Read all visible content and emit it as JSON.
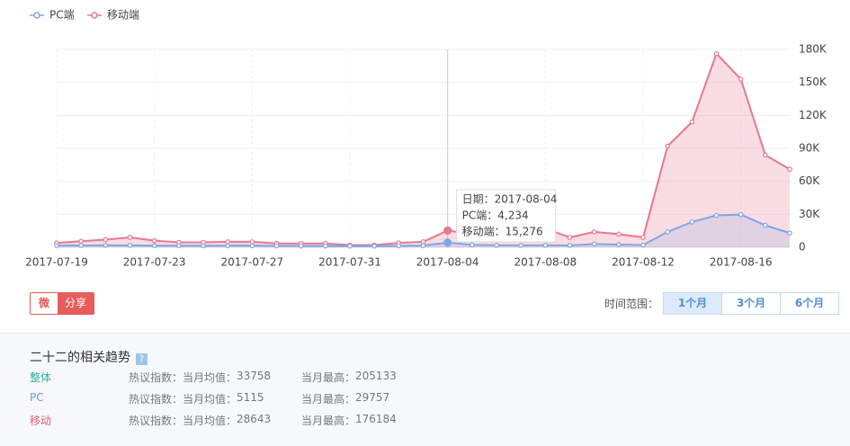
{
  "chart_data": {
    "type": "line",
    "categories": [
      "2017-07-19",
      null,
      null,
      null,
      "2017-07-23",
      null,
      null,
      null,
      "2017-07-27",
      null,
      null,
      null,
      "2017-07-31",
      null,
      null,
      null,
      "2017-08-04",
      null,
      null,
      null,
      "2017-08-08",
      null,
      null,
      null,
      "2017-08-12",
      null,
      null,
      null,
      "2017-08-16",
      null,
      null
    ],
    "series": [
      {
        "name": "PC端",
        "color": "#7fa6e6",
        "values": [
          1500,
          1600,
          1800,
          1700,
          1500,
          1400,
          1400,
          1500,
          1500,
          1300,
          1200,
          1200,
          1100,
          1100,
          1300,
          1500,
          4234,
          2200,
          1800,
          1700,
          1800,
          1700,
          3000,
          2500,
          2000,
          14000,
          23000,
          29000,
          29757,
          20000,
          13000
        ]
      },
      {
        "name": "移动端",
        "color": "#e8788f",
        "values": [
          4000,
          5500,
          7000,
          9000,
          6000,
          4500,
          4500,
          5000,
          5000,
          3500,
          3500,
          3500,
          2000,
          2000,
          4000,
          5000,
          15276,
          12000,
          14000,
          16000,
          17000,
          9000,
          14000,
          12000,
          9000,
          92000,
          114000,
          176184,
          153000,
          84000,
          71000
        ]
      }
    ],
    "ylim": [
      0,
      180000
    ],
    "yticks": [
      0,
      {
        "value": 30000,
        "label": "30K"
      },
      {
        "value": 60000,
        "label": "60K"
      },
      {
        "value": 90000,
        "label": "90K"
      },
      {
        "value": 120000,
        "label": "120K"
      },
      {
        "value": 150000,
        "label": "150K"
      },
      {
        "value": 180000,
        "label": "180K"
      }
    ],
    "grid": true,
    "tooltip": {
      "index": 16,
      "lines": [
        "日期：2017-08-04",
        "PC端：4,234",
        "移动端：15,276"
      ]
    }
  },
  "share": "分享",
  "range": {
    "label": "时间范围：",
    "options": [
      "1个月",
      "3个月",
      "6个月"
    ],
    "active": 0
  },
  "trend": {
    "title": "二十二的相关趋势",
    "help": "?",
    "rows": [
      {
        "name": "整体",
        "color": "#2fb39a",
        "avg_label": "热议指数：当月均值：",
        "avg": 33758,
        "max_label": "当月最高：",
        "max": 205133
      },
      {
        "name": "PC",
        "color": "#6b9bd1",
        "avg_label": "热议指数：当月均值：",
        "avg": 5115,
        "max_label": "当月最高：",
        "max": 29757
      },
      {
        "name": "移动",
        "color": "#e0606e",
        "avg_label": "热议指数：当月均值：",
        "avg": 28643,
        "max_label": "当月最高：",
        "max": 176184
      }
    ]
  }
}
